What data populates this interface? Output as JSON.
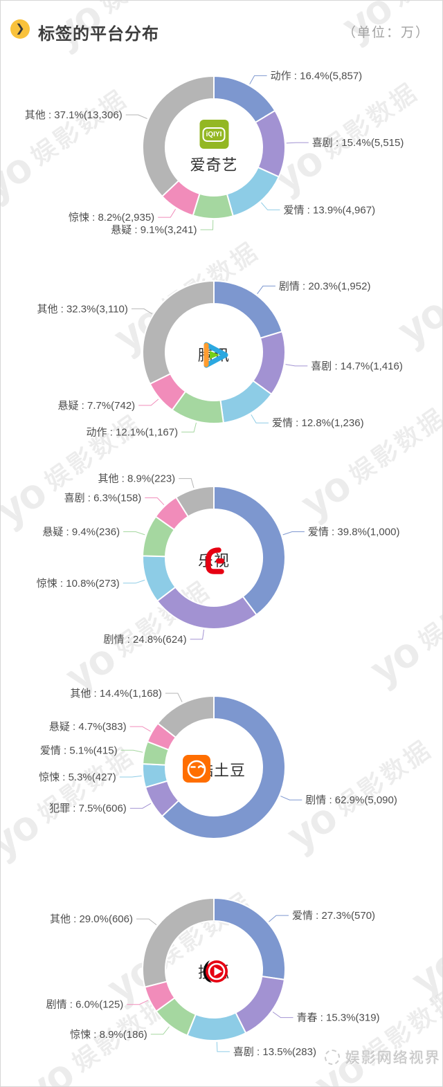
{
  "page": {
    "title": "标签的平台分布",
    "unit_note": "（单位：万）",
    "bullet_glyph": "❯",
    "watermark_unit": "娱影数据",
    "watermark_logo_text": "yo",
    "footer_watermark": "娱影网络视界",
    "accent_yellow": "#f9c23c"
  },
  "palette": {
    "blue": "#7d97cf",
    "purple": "#a292d2",
    "cyan": "#8dcce6",
    "green": "#a5d7a0",
    "pink": "#f18cba",
    "gray": "#b5b5b5",
    "label_text": "#4d4d4d"
  },
  "chart_data": [
    {
      "type": "donut",
      "platform": "爱奇艺",
      "logo": "iqiyi",
      "slices": [
        {
          "label": "动作",
          "pct": 16.4,
          "value": "5,857",
          "color": "blue"
        },
        {
          "label": "喜剧",
          "pct": 15.4,
          "value": "5,515",
          "color": "purple"
        },
        {
          "label": "爱情",
          "pct": 13.9,
          "value": "4,967",
          "color": "cyan"
        },
        {
          "label": "悬疑",
          "pct": 9.1,
          "value": "3,241",
          "color": "green"
        },
        {
          "label": "惊悚",
          "pct": 8.2,
          "value": "2,935",
          "color": "pink"
        },
        {
          "label": "其他",
          "pct": 37.1,
          "value": "13,306",
          "color": "gray"
        }
      ]
    },
    {
      "type": "donut",
      "platform": "腾讯",
      "logo": "tencent",
      "slices": [
        {
          "label": "剧情",
          "pct": 20.3,
          "value": "1,952",
          "color": "blue"
        },
        {
          "label": "喜剧",
          "pct": 14.7,
          "value": "1,416",
          "color": "purple"
        },
        {
          "label": "爱情",
          "pct": 12.8,
          "value": "1,236",
          "color": "cyan"
        },
        {
          "label": "动作",
          "pct": 12.1,
          "value": "1,167",
          "color": "green"
        },
        {
          "label": "悬疑",
          "pct": 7.7,
          "value": "742",
          "color": "pink"
        },
        {
          "label": "其他",
          "pct": 32.3,
          "value": "3,110",
          "color": "gray"
        }
      ]
    },
    {
      "type": "donut",
      "platform": "乐视",
      "logo": "letv",
      "slices": [
        {
          "label": "爱情",
          "pct": 39.8,
          "value": "1,000",
          "color": "blue"
        },
        {
          "label": "剧情",
          "pct": 24.8,
          "value": "624",
          "color": "purple"
        },
        {
          "label": "惊悚",
          "pct": 10.8,
          "value": "273",
          "color": "cyan"
        },
        {
          "label": "悬疑",
          "pct": 9.4,
          "value": "236",
          "color": "green"
        },
        {
          "label": "喜剧",
          "pct": 6.3,
          "value": "158",
          "color": "pink"
        },
        {
          "label": "其他",
          "pct": 8.9,
          "value": "223",
          "color": "gray"
        }
      ]
    },
    {
      "type": "donut",
      "platform": "优酷土豆",
      "logo": "youkutudou",
      "slices": [
        {
          "label": "剧情",
          "pct": 62.9,
          "value": "5,090",
          "color": "blue"
        },
        {
          "label": "犯罪",
          "pct": 7.5,
          "value": "606",
          "color": "purple"
        },
        {
          "label": "惊悚",
          "pct": 5.3,
          "value": "427",
          "color": "cyan"
        },
        {
          "label": "爱情",
          "pct": 5.1,
          "value": "415",
          "color": "green"
        },
        {
          "label": "悬疑",
          "pct": 4.7,
          "value": "383",
          "color": "pink"
        },
        {
          "label": "其他",
          "pct": 14.4,
          "value": "1,168",
          "color": "gray"
        }
      ]
    },
    {
      "type": "donut",
      "platform": "搜狐",
      "logo": "sohu",
      "slices": [
        {
          "label": "爱情",
          "pct": 27.3,
          "value": "570",
          "color": "blue"
        },
        {
          "label": "青春",
          "pct": 15.3,
          "value": "319",
          "color": "purple"
        },
        {
          "label": "喜剧",
          "pct": 13.5,
          "value": "283",
          "color": "cyan"
        },
        {
          "label": "惊悚",
          "pct": 8.9,
          "value": "186",
          "color": "green"
        },
        {
          "label": "剧情",
          "pct": 6.0,
          "value": "125",
          "color": "pink"
        },
        {
          "label": "其他",
          "pct": 29.0,
          "value": "606",
          "color": "gray"
        }
      ]
    }
  ]
}
